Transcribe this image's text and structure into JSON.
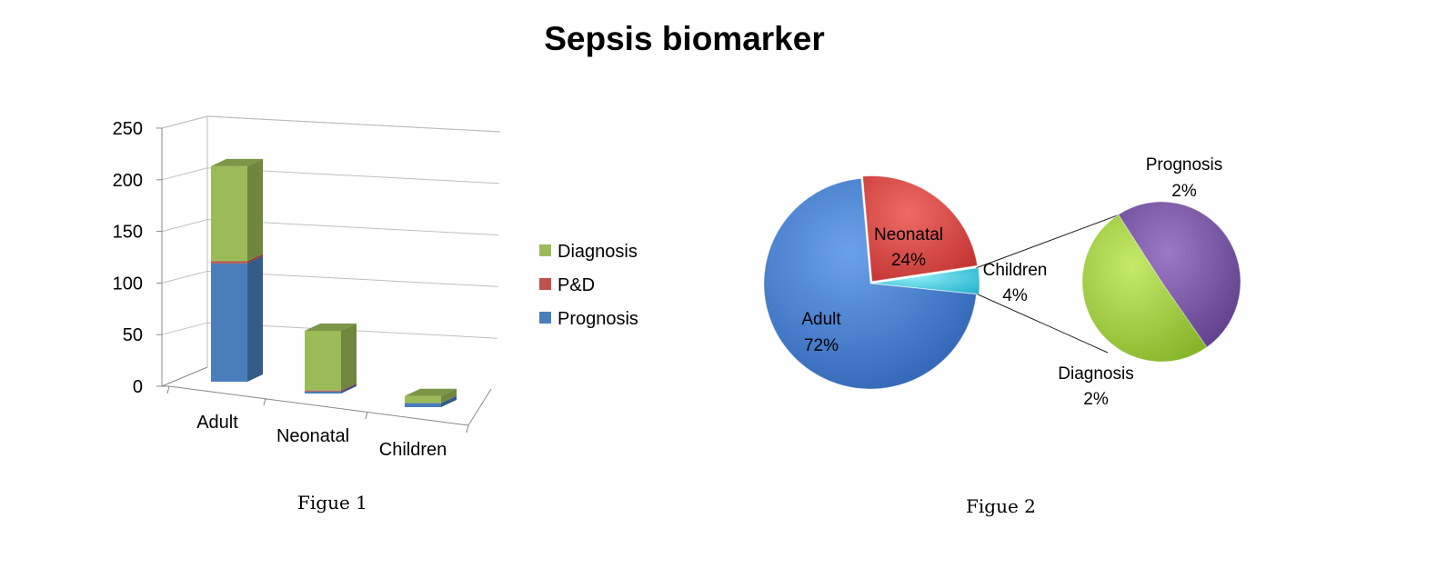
{
  "title": "Sepsis biomarker",
  "figure1_caption": "Figue 1",
  "figure2_caption": "Figue 2",
  "colors": {
    "Prognosis": "#4a7ebb",
    "P&D": "#c0504d",
    "Diagnosis": "#9bbb59",
    "Neonatal": "#d9433f",
    "Adult": "#3f7cd1",
    "Children": "#4bd1e6",
    "subPrognosis": "#7b55a6",
    "subDiagnosis": "#9fcd3c"
  },
  "chart_data": [
    {
      "type": "bar",
      "stacked": true,
      "three_d": true,
      "categories": [
        "Adult",
        "Neonatal",
        "Children"
      ],
      "series": [
        {
          "name": "Prognosis",
          "values": [
            117,
            2,
            4
          ]
        },
        {
          "name": "P&D",
          "values": [
            2,
            1,
            0
          ]
        },
        {
          "name": "Diagnosis",
          "values": [
            94,
            59,
            7
          ]
        }
      ],
      "ylim": [
        0,
        250
      ],
      "yticks": [
        0,
        50,
        100,
        150,
        200,
        250
      ],
      "legend": [
        "Diagnosis",
        "P&D",
        "Prognosis"
      ],
      "legend_position": "right",
      "grid": true
    },
    {
      "type": "pie",
      "subtype": "pie-of-pie",
      "slices": [
        {
          "label": "Neonatal",
          "pct_label": "24%",
          "value": 24
        },
        {
          "label": "Children",
          "pct_label": "4%",
          "value": 4
        },
        {
          "label": "Adult",
          "pct_label": "72%",
          "value": 72
        }
      ],
      "secondary": [
        {
          "label": "Prognosis",
          "pct_label": "2%",
          "value": 2
        },
        {
          "label": "Diagnosis",
          "pct_label": "2%",
          "value": 2
        }
      ]
    }
  ]
}
